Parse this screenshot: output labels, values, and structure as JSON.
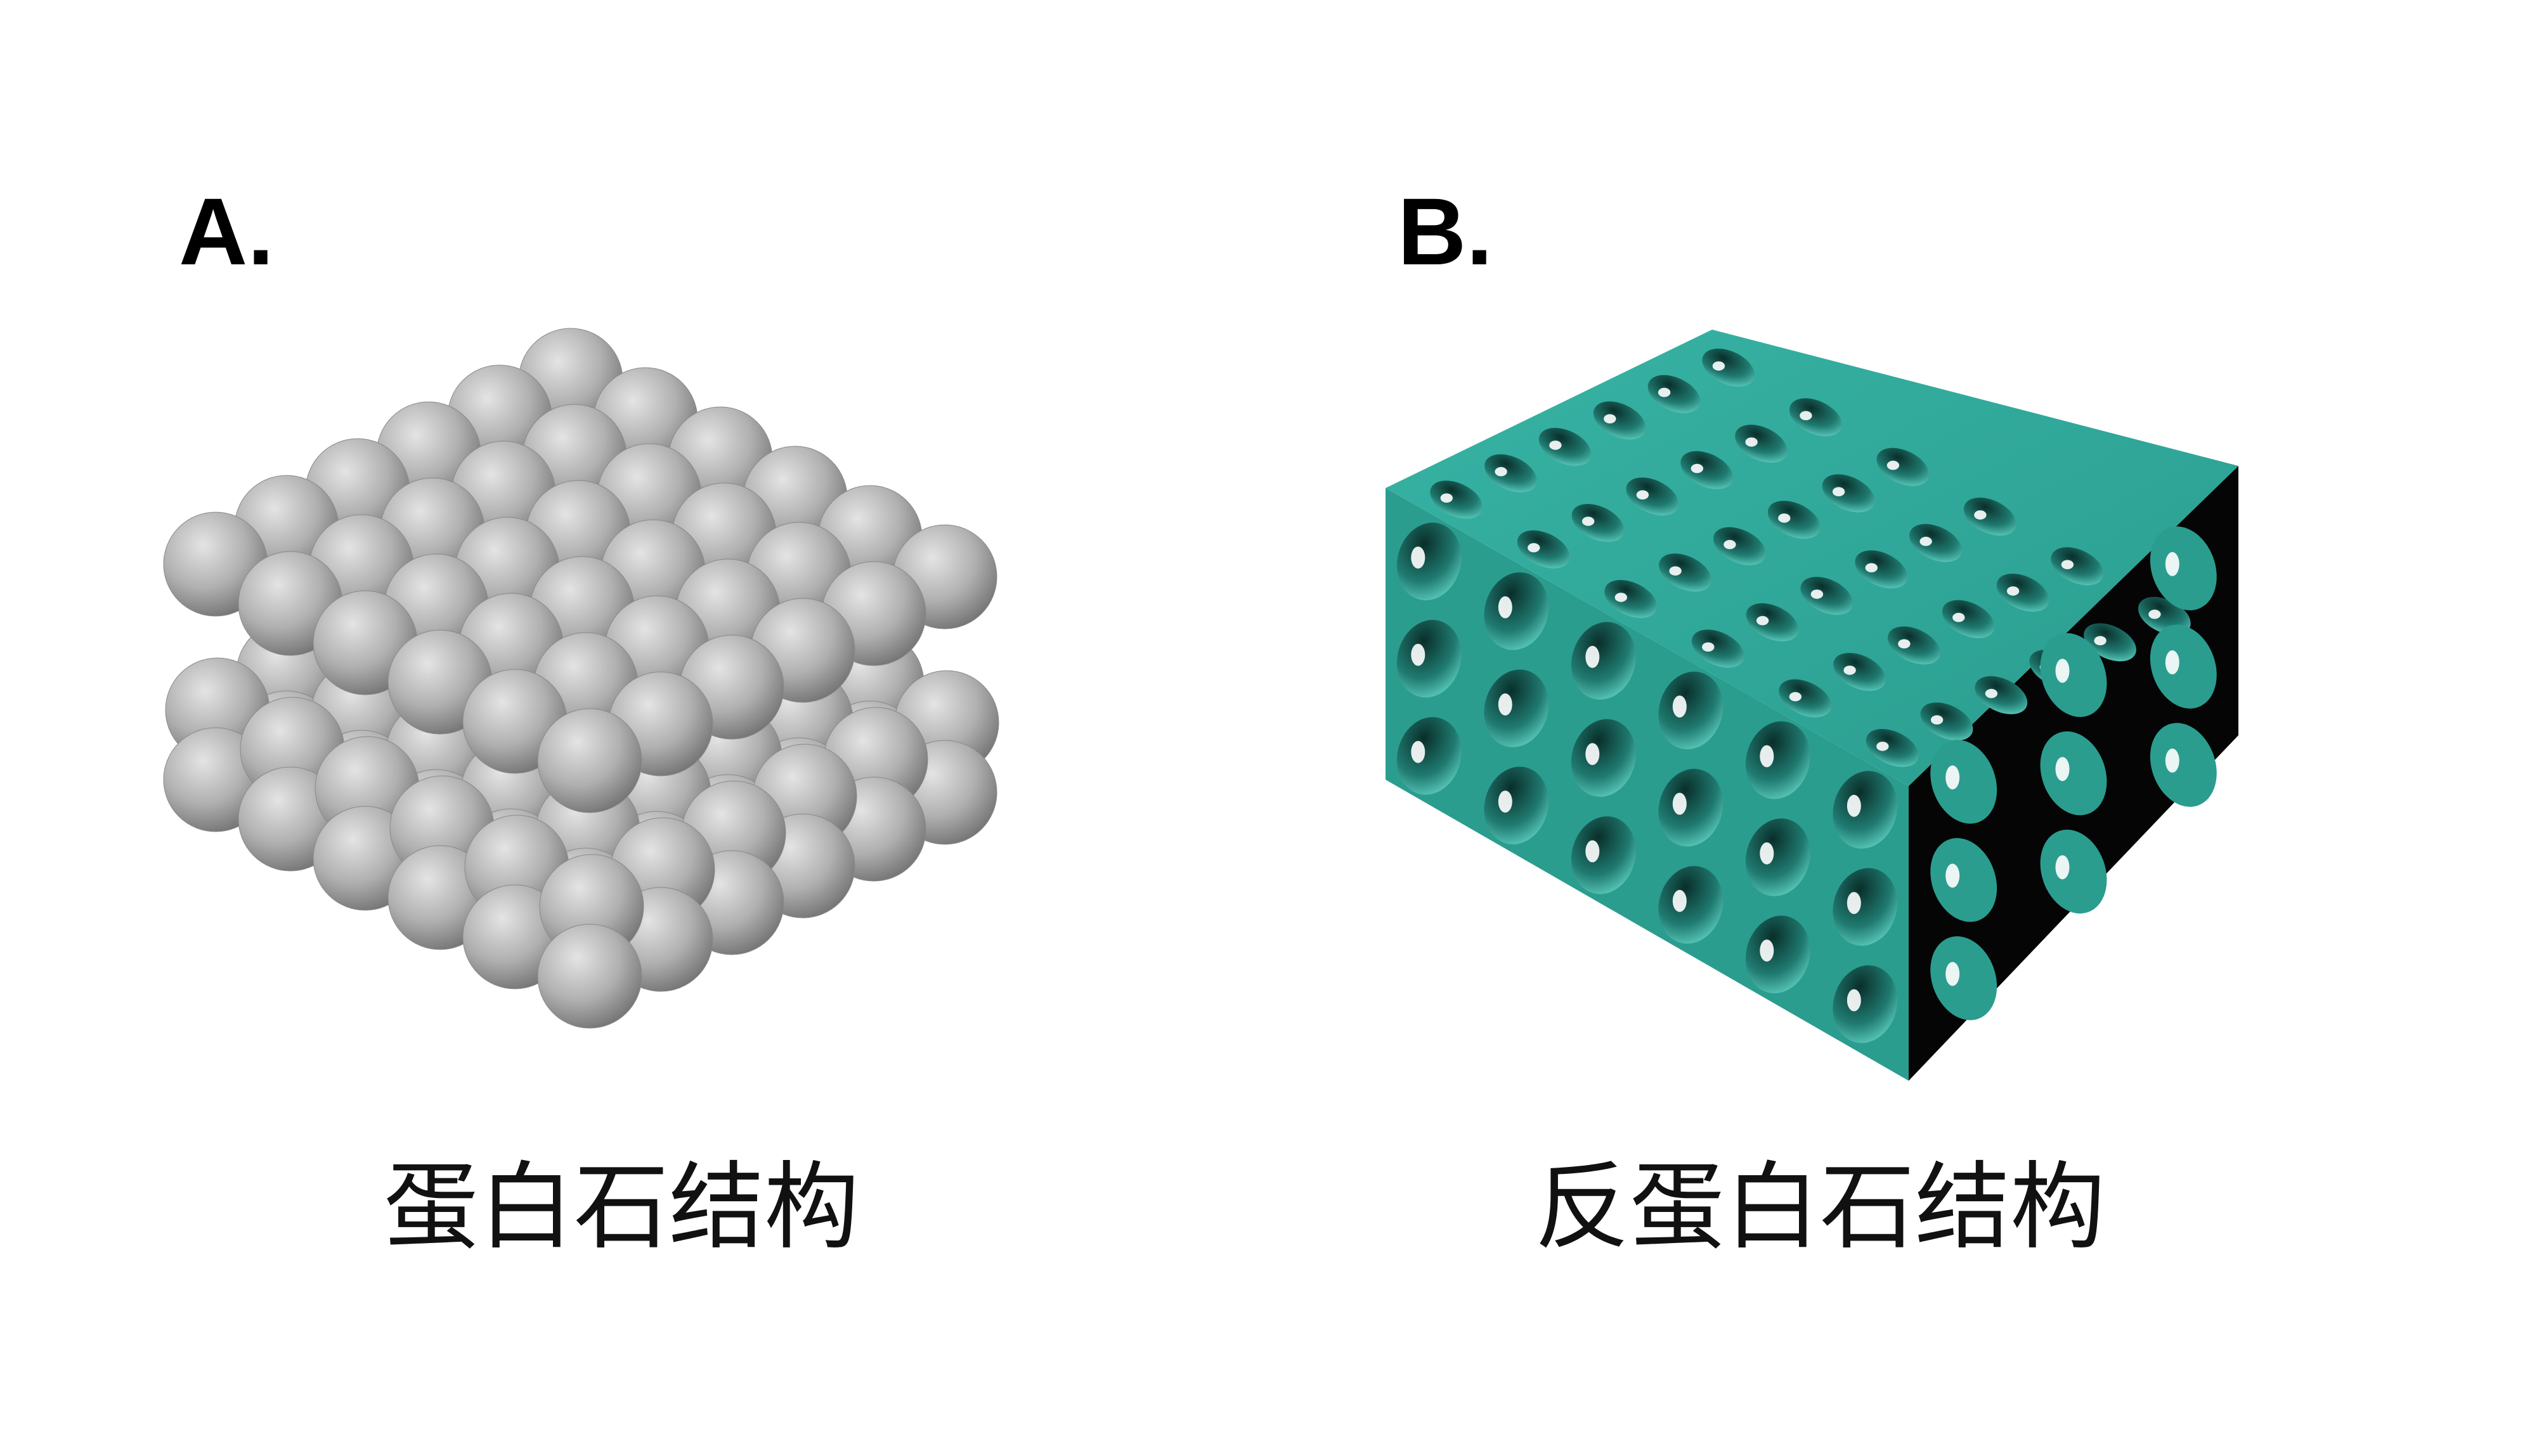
{
  "panel_a": {
    "label": "A.",
    "caption": "蛋白石结构",
    "sphere_color": "#b8b8b8"
  },
  "panel_b": {
    "label": "B.",
    "caption": "反蛋白石结构",
    "frame_color": "#2a9d8f",
    "shadow_color": "#000000"
  }
}
